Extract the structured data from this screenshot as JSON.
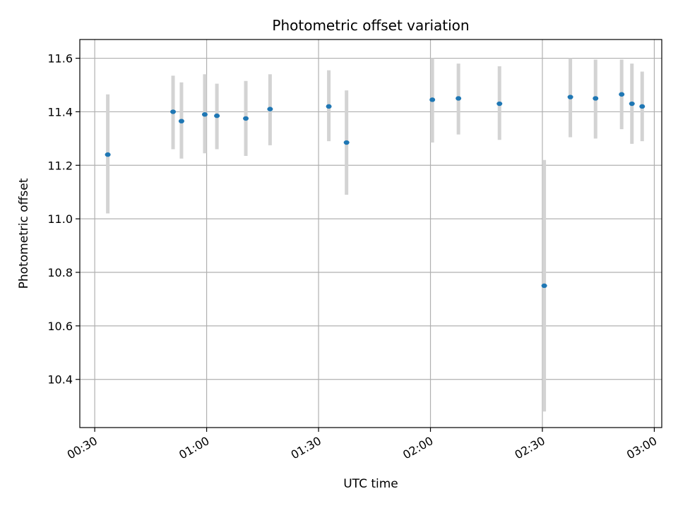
{
  "chart_data": {
    "type": "scatter",
    "title": "Photometric offset variation",
    "xlabel": "UTC time",
    "ylabel": "Photometric offset",
    "x_ticks": [
      "00:30",
      "01:00",
      "01:30",
      "02:00",
      "02:30",
      "03:00"
    ],
    "y_ticks": [
      "10.4",
      "10.6",
      "10.8",
      "11.0",
      "11.2",
      "11.4",
      "11.6"
    ],
    "xlim": [
      "00:26",
      "03:02"
    ],
    "ylim": [
      10.22,
      11.67
    ],
    "grid": true,
    "colors": {
      "point": "#1f77b4",
      "errorbar": "#d3d3d3",
      "grid": "#b0b0b0"
    },
    "points": [
      {
        "x": "00:33:30",
        "y": 11.24,
        "low": 11.02,
        "high": 11.465
      },
      {
        "x": "00:51:00",
        "y": 11.4,
        "low": 11.26,
        "high": 11.535
      },
      {
        "x": "00:53:15",
        "y": 11.365,
        "low": 11.225,
        "high": 11.51
      },
      {
        "x": "00:59:30",
        "y": 11.39,
        "low": 11.245,
        "high": 11.54
      },
      {
        "x": "01:02:45",
        "y": 11.385,
        "low": 11.26,
        "high": 11.505
      },
      {
        "x": "01:10:30",
        "y": 11.375,
        "low": 11.235,
        "high": 11.515
      },
      {
        "x": "01:17:00",
        "y": 11.41,
        "low": 11.275,
        "high": 11.54
      },
      {
        "x": "01:32:45",
        "y": 11.42,
        "low": 11.29,
        "high": 11.555
      },
      {
        "x": "01:37:30",
        "y": 11.285,
        "low": 11.09,
        "high": 11.48
      },
      {
        "x": "02:00:30",
        "y": 11.445,
        "low": 11.285,
        "high": 11.6
      },
      {
        "x": "02:07:30",
        "y": 11.45,
        "low": 11.315,
        "high": 11.58
      },
      {
        "x": "02:18:30",
        "y": 11.43,
        "low": 11.295,
        "high": 11.57
      },
      {
        "x": "02:30:30",
        "y": 10.75,
        "low": 10.28,
        "high": 11.22
      },
      {
        "x": "02:37:30",
        "y": 11.455,
        "low": 11.305,
        "high": 11.6
      },
      {
        "x": "02:44:15",
        "y": 11.45,
        "low": 11.3,
        "high": 11.595
      },
      {
        "x": "02:51:15",
        "y": 11.465,
        "low": 11.335,
        "high": 11.595
      },
      {
        "x": "02:54:00",
        "y": 11.43,
        "low": 11.28,
        "high": 11.58
      },
      {
        "x": "02:56:45",
        "y": 11.42,
        "low": 11.29,
        "high": 11.55
      }
    ]
  }
}
